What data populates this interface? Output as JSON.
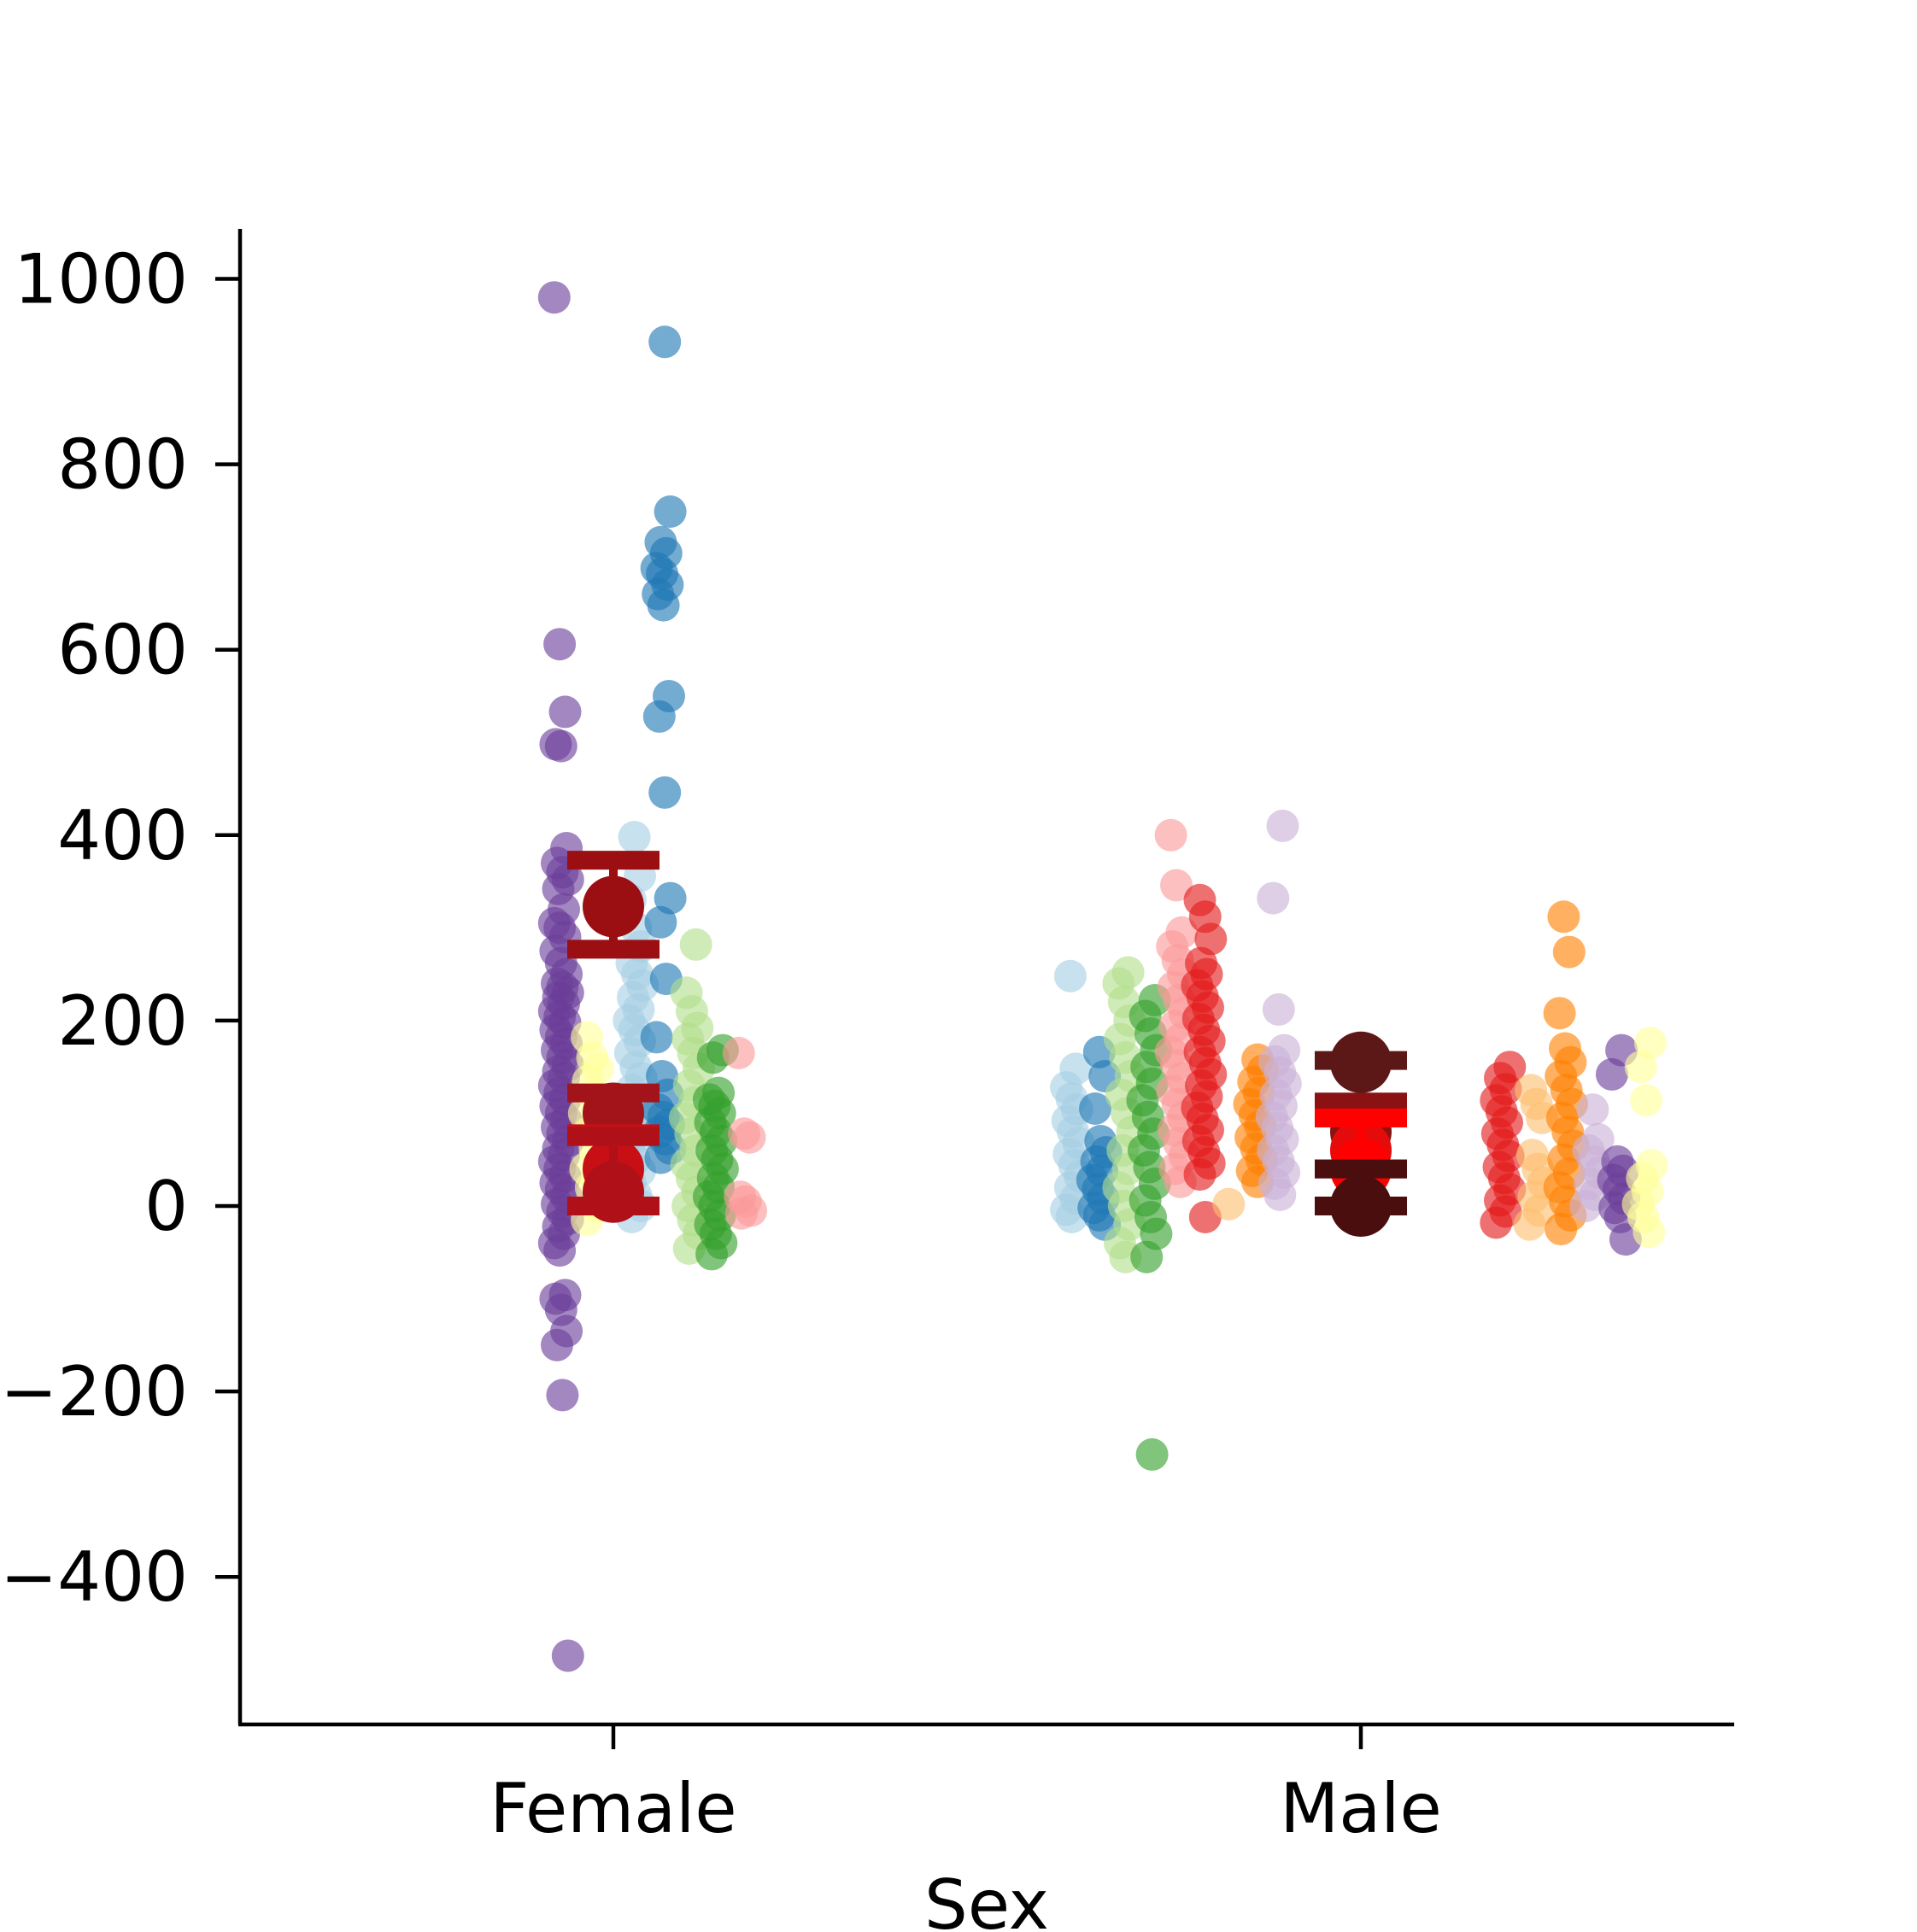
{
  "chart_data": {
    "type": "scatter",
    "title": "",
    "xlabel": "Sex",
    "ylabel": "",
    "categories": [
      "Female",
      "Male"
    ],
    "ylim": [
      -560,
      1050
    ],
    "yticks": [
      -400,
      -200,
      0,
      200,
      400,
      600,
      800,
      1000
    ],
    "ytick_labels": [
      "−400",
      "−200",
      "0",
      "200",
      "400",
      "600",
      "800",
      "1000"
    ],
    "grid": false,
    "legend": "none",
    "series": [
      {
        "category": "Female",
        "offset": -0.07,
        "color": "#6a3d9a",
        "values": [
          980,
          606,
          533,
          498,
          496,
          386,
          370,
          360,
          352,
          342,
          320,
          305,
          300,
          290,
          275,
          262,
          250,
          240,
          236,
          230,
          225,
          218,
          210,
          204,
          198,
          190,
          182,
          175,
          168,
          160,
          152,
          145,
          138,
          130,
          122,
          115,
          108,
          100,
          92,
          85,
          78,
          70,
          62,
          55,
          48,
          40,
          32,
          25,
          18,
          10,
          2,
          -6,
          -14,
          -22,
          -30,
          -40,
          -48,
          -96,
          -100,
          -112,
          -135,
          -150,
          -204,
          -485
        ]
      },
      {
        "category": "Female",
        "offset": -0.03,
        "color": "#ffff99",
        "values": [
          182,
          160,
          148,
          135,
          120,
          100,
          80,
          60,
          40,
          20,
          0,
          -15
        ]
      },
      {
        "category": "Female",
        "offset": 0.03,
        "color": "#a6cee3",
        "values": [
          398,
          356,
          330,
          300,
          280,
          262,
          250,
          238,
          225,
          212,
          200,
          190,
          178,
          165,
          150,
          138,
          125,
          112,
          100,
          88,
          75,
          62,
          50,
          38,
          25,
          12,
          0,
          -12
        ]
      },
      {
        "category": "Female",
        "offset": 0.067,
        "color": "#1f78b4",
        "values": [
          932,
          749,
          716,
          704,
          688,
          682,
          670,
          660,
          648,
          550,
          528,
          446,
          332,
          306,
          245,
          182,
          140,
          120,
          104,
          96,
          88,
          80,
          72,
          62,
          52
        ]
      },
      {
        "category": "Female",
        "offset": 0.105,
        "color": "#b2df8a",
        "values": [
          282,
          230,
          210,
          192,
          180,
          165,
          148,
          130,
          112,
          95,
          78,
          60,
          45,
          30,
          15,
          0,
          -15,
          -30,
          -46
        ]
      },
      {
        "category": "Female",
        "offset": 0.137,
        "color": "#33a02c",
        "values": [
          168,
          160,
          122,
          115,
          108,
          100,
          90,
          80,
          70,
          60,
          50,
          40,
          30,
          20,
          10,
          0,
          -10,
          -20,
          -30,
          -40,
          -52
        ]
      },
      {
        "category": "Female",
        "offset": 0.175,
        "color": "#fb9a99",
        "values": [
          165,
          78,
          74,
          10,
          5,
          -5,
          -8
        ]
      },
      {
        "category": "Male",
        "offset": -0.385,
        "color": "#a6cee3",
        "values": [
          248,
          148,
          128,
          116,
          104,
          92,
          80,
          68,
          56,
          44,
          32,
          20,
          8,
          -4,
          -12
        ]
      },
      {
        "category": "Male",
        "offset": -0.35,
        "color": "#1f78b4",
        "values": [
          166,
          140,
          105,
          70,
          58,
          48,
          38,
          28,
          18,
          8,
          -2,
          -10,
          -20
        ]
      },
      {
        "category": "Male",
        "offset": -0.315,
        "color": "#b2df8a",
        "values": [
          252,
          240,
          220,
          200,
          180,
          160,
          140,
          120,
          100,
          80,
          60,
          40,
          20,
          0,
          -20,
          -40,
          -55
        ]
      },
      {
        "category": "Male",
        "offset": -0.283,
        "color": "#33a02c",
        "values": [
          222,
          205,
          186,
          168,
          150,
          132,
          114,
          96,
          78,
          60,
          42,
          24,
          6,
          -12,
          -30,
          -55,
          -268
        ]
      },
      {
        "category": "Male",
        "offset": -0.245,
        "color": "#fb9a99",
        "values": [
          400,
          346,
          295,
          280,
          265,
          250,
          236,
          222,
          208,
          194,
          180,
          166,
          152,
          138,
          124,
          110,
          96,
          82,
          68,
          54,
          40,
          26
        ]
      },
      {
        "category": "Male",
        "offset": -0.21,
        "color": "#e31a1c",
        "values": [
          330,
          312,
          288,
          262,
          250,
          238,
          226,
          214,
          202,
          190,
          178,
          166,
          154,
          142,
          130,
          118,
          106,
          94,
          82,
          70,
          58,
          46,
          34,
          -12
        ]
      },
      {
        "category": "Male",
        "offset": -0.175,
        "color": "#fdbf6f",
        "values": [
          2
        ]
      },
      {
        "category": "Male",
        "offset": -0.14,
        "color": "#ff7f00",
        "values": [
          158,
          146,
          134,
          122,
          110,
          98,
          86,
          74,
          62,
          50,
          38,
          26
        ]
      },
      {
        "category": "Male",
        "offset": -0.11,
        "color": "#cab2d6",
        "values": [
          410,
          332,
          212,
          168,
          156,
          144,
          132,
          120,
          108,
          96,
          84,
          72,
          60,
          48,
          36,
          24,
          12
        ]
      },
      {
        "category": "Male",
        "offset": 0.19,
        "color": "#e31a1c",
        "values": [
          150,
          138,
          126,
          114,
          102,
          90,
          78,
          66,
          54,
          42,
          30,
          18,
          6,
          -6,
          -18
        ]
      },
      {
        "category": "Male",
        "offset": 0.235,
        "color": "#fdbf6f",
        "values": [
          125,
          110,
          95,
          55,
          40,
          25,
          10,
          -5,
          -20
        ]
      },
      {
        "category": "Male",
        "offset": 0.275,
        "color": "#ff7f00",
        "values": [
          312,
          274,
          208,
          170,
          155,
          140,
          125,
          110,
          95,
          80,
          65,
          50,
          35,
          20,
          5,
          -10,
          -25
        ]
      },
      {
        "category": "Male",
        "offset": 0.31,
        "color": "#cab2d6",
        "values": [
          104,
          72,
          60,
          48,
          36,
          24,
          12,
          0
        ]
      },
      {
        "category": "Male",
        "offset": 0.345,
        "color": "#6a3d9a",
        "values": [
          168,
          142,
          48,
          38,
          28,
          18,
          8,
          -2,
          -12,
          -36
        ]
      },
      {
        "category": "Male",
        "offset": 0.38,
        "color": "#ffff99",
        "values": [
          176,
          150,
          114,
          44,
          30,
          16,
          2,
          -12,
          -28
        ]
      }
    ],
    "summary": [
      {
        "category": "Female",
        "color": "#9b0f12",
        "mean": 323,
        "ci": [
          277,
          373
        ]
      },
      {
        "category": "Female",
        "color": "#a3141a",
        "mean": 100,
        "ci": [
          75,
          122
        ]
      },
      {
        "category": "Female",
        "color": "#c80f16",
        "mean": 40,
        "ci": [
          0,
          78
        ]
      },
      {
        "category": "Female",
        "color": "#b01018",
        "mean": 15,
        "ci": [
          0,
          75
        ]
      },
      {
        "category": "Male",
        "color": "#5c1717",
        "mean": 155,
        "ci": [
          112,
          157
        ]
      },
      {
        "category": "Male",
        "color": "#8a1212",
        "mean": 80,
        "ci": [
          40,
          112
        ]
      },
      {
        "category": "Male",
        "color": "#e60b0b",
        "mean": 60,
        "ci": [
          0,
          95
        ]
      },
      {
        "category": "Male",
        "color": "#ff0000",
        "mean": 40,
        "ci": [
          0,
          95
        ]
      },
      {
        "category": "Male",
        "color": "#4a0e0e",
        "mean": 0,
        "ci": [
          0,
          40
        ]
      }
    ]
  }
}
